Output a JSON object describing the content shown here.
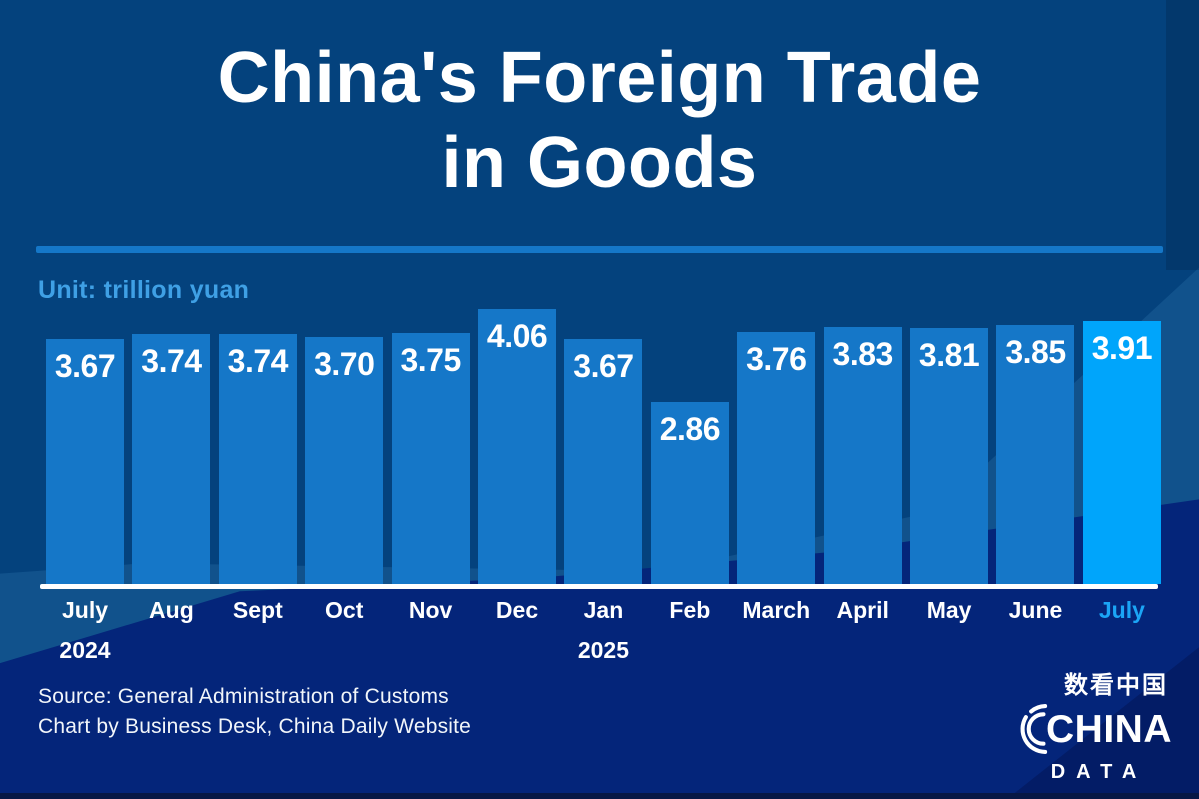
{
  "title": {
    "line1": "China's Foreign Trade",
    "line2": "in Goods"
  },
  "unit_label": "Unit: trillion yuan",
  "chart_data": {
    "type": "bar",
    "title": "China's Foreign Trade in Goods",
    "xlabel": "",
    "ylabel": "trillion yuan",
    "ylim": [
      0,
      4.3
    ],
    "grid": false,
    "legend": "none",
    "categories": [
      "July",
      "Aug",
      "Sept",
      "Oct",
      "Nov",
      "Dec",
      "Jan",
      "Feb",
      "March",
      "April",
      "May",
      "June",
      "July"
    ],
    "year_markers": {
      "0": "2024",
      "6": "2025"
    },
    "values": [
      3.67,
      3.74,
      3.74,
      3.7,
      3.75,
      4.06,
      3.67,
      2.86,
      3.76,
      3.83,
      3.81,
      3.85,
      3.91
    ],
    "value_labels": [
      "3.67",
      "3.74",
      "3.74",
      "3.70",
      "3.75",
      "4.06",
      "3.67",
      "2.86",
      "3.76",
      "3.83",
      "3.81",
      "3.85",
      "3.91"
    ],
    "highlight_index": 12,
    "highlight_category": "July 2025"
  },
  "footer": {
    "source_line1": "Source: General Administration of Customs",
    "source_line2": "Chart by Business Desk, China Daily Website"
  },
  "logo": {
    "chinese": "数看中国",
    "name": "CHINA",
    "sub": "DATA"
  },
  "colors": {
    "background": "#04427D",
    "steel_wave": "#11528C",
    "navy_wave": "#04257A",
    "navy_corner": "#031C66",
    "bar": "#1577C8",
    "bar_highlight": "#00A5FB",
    "divider": "#1577C8",
    "unit_text": "#3FA0E5",
    "month_highlight": "#1BA5F6",
    "text": "#FFFFFF"
  }
}
